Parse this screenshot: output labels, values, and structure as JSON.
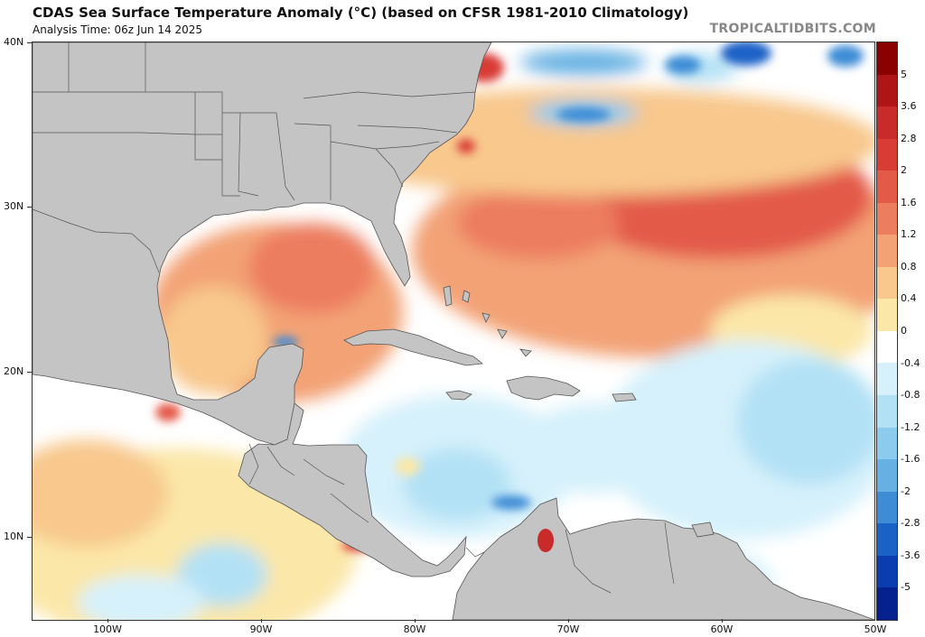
{
  "title": "CDAS Sea Surface Temperature Anomaly (°C) (based on CFSR 1981-2010 Climatology)",
  "subtitle": "Analysis Time: 06z Jun 14 2025",
  "credit": "TROPICALTIDBITS.COM",
  "lat_labels": [
    "40N",
    "30N",
    "20N",
    "10N"
  ],
  "lon_labels": [
    "100W",
    "90W",
    "80W",
    "70W",
    "60W",
    "50W"
  ],
  "colorbar": {
    "labels": [
      "5",
      "3.6",
      "2.8",
      "2",
      "1.6",
      "1.2",
      "0.8",
      "0.4",
      "0",
      "-0.4",
      "-0.8",
      "-1.2",
      "-1.6",
      "-2",
      "-2.8",
      "-3.6",
      "-5"
    ],
    "colors": [
      "#8b0000",
      "#b01515",
      "#c92a2a",
      "#d93b35",
      "#e35a48",
      "#ec7d5f",
      "#f3a276",
      "#f8c88d",
      "#fbe7a8",
      "#ffffff",
      "#d6f1fb",
      "#b2e1f5",
      "#8ccbee",
      "#66b0e3",
      "#3e8cd6",
      "#1b62c7",
      "#0b3db0",
      "#05208f"
    ]
  },
  "colors": {
    "land": "#c4c4c4",
    "land_border": "#555555"
  }
}
